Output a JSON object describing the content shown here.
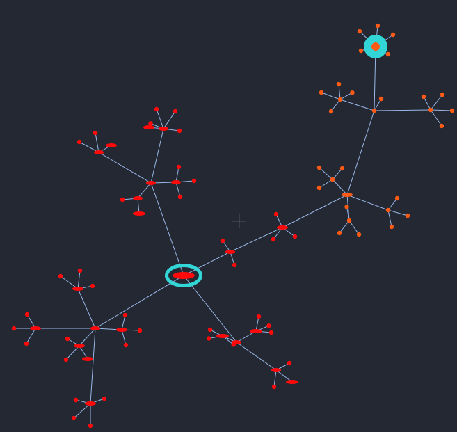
{
  "colors": {
    "background": "#232832",
    "edge": "#9ab8e8",
    "root_node": "#ff0a0a",
    "root_ring": "#33d6d6",
    "red_node": "#ff0a0a",
    "orange_node": "#ff5a14",
    "cursor": "#4c5464"
  },
  "graph": {
    "nodes": [
      {
        "id": "root",
        "kind": "root",
        "color": "red"
      },
      {
        "id": "t",
        "kind": "hub",
        "color": "red"
      },
      {
        "id": "t1",
        "kind": "hub",
        "color": "red"
      },
      {
        "id": "t1a",
        "kind": "leaf",
        "color": "red"
      },
      {
        "id": "t1b",
        "kind": "leaf",
        "color": "red"
      },
      {
        "id": "t1c",
        "kind": "leaf",
        "color": "red"
      },
      {
        "id": "t1d",
        "kind": "leaf",
        "color": "red"
      },
      {
        "id": "t1e",
        "kind": "leaf",
        "color": "red"
      },
      {
        "id": "t2",
        "kind": "hub",
        "color": "red"
      },
      {
        "id": "t2a",
        "kind": "leaf",
        "color": "red"
      },
      {
        "id": "t2b",
        "kind": "leaf",
        "color": "red"
      },
      {
        "id": "t2c",
        "kind": "leaf",
        "color": "red"
      },
      {
        "id": "t3",
        "kind": "hub",
        "color": "red"
      },
      {
        "id": "t3a",
        "kind": "leaf",
        "color": "red"
      },
      {
        "id": "t3b",
        "kind": "leaf",
        "color": "red"
      },
      {
        "id": "t3c",
        "kind": "leaf",
        "color": "red"
      },
      {
        "id": "t4",
        "kind": "hub",
        "color": "red"
      },
      {
        "id": "t4a",
        "kind": "leaf",
        "color": "red"
      },
      {
        "id": "t4b",
        "kind": "leaf",
        "color": "red"
      },
      {
        "id": "l",
        "kind": "hub",
        "color": "red"
      },
      {
        "id": "l1",
        "kind": "hub",
        "color": "red"
      },
      {
        "id": "l1a",
        "kind": "leaf",
        "color": "red"
      },
      {
        "id": "l1b",
        "kind": "leaf",
        "color": "red"
      },
      {
        "id": "l1c",
        "kind": "leaf",
        "color": "red"
      },
      {
        "id": "l2",
        "kind": "hub",
        "color": "red"
      },
      {
        "id": "l2a",
        "kind": "leaf",
        "color": "red"
      },
      {
        "id": "l2b",
        "kind": "leaf",
        "color": "red"
      },
      {
        "id": "l2c",
        "kind": "leaf",
        "color": "red"
      },
      {
        "id": "l3",
        "kind": "hub",
        "color": "red"
      },
      {
        "id": "l3a",
        "kind": "leaf",
        "color": "red"
      },
      {
        "id": "l3b",
        "kind": "leaf",
        "color": "red"
      },
      {
        "id": "l3c",
        "kind": "leaf",
        "color": "red"
      },
      {
        "id": "l4",
        "kind": "hub",
        "color": "red"
      },
      {
        "id": "l4a",
        "kind": "leaf",
        "color": "red"
      },
      {
        "id": "l4b",
        "kind": "leaf",
        "color": "red"
      },
      {
        "id": "l4c",
        "kind": "leaf",
        "color": "red"
      },
      {
        "id": "l5",
        "kind": "hub",
        "color": "red"
      },
      {
        "id": "l5a",
        "kind": "leaf",
        "color": "red"
      },
      {
        "id": "l5b",
        "kind": "leaf",
        "color": "red"
      },
      {
        "id": "l5c",
        "kind": "leaf",
        "color": "red"
      },
      {
        "id": "l5d",
        "kind": "leaf",
        "color": "red"
      },
      {
        "id": "b",
        "kind": "hub",
        "color": "red"
      },
      {
        "id": "b1",
        "kind": "hub",
        "color": "red"
      },
      {
        "id": "b1a",
        "kind": "leaf",
        "color": "red"
      },
      {
        "id": "b1b",
        "kind": "leaf",
        "color": "red"
      },
      {
        "id": "b1c",
        "kind": "leaf",
        "color": "red"
      },
      {
        "id": "b2",
        "kind": "hub",
        "color": "red"
      },
      {
        "id": "b2a",
        "kind": "leaf",
        "color": "red"
      },
      {
        "id": "b2b",
        "kind": "leaf",
        "color": "red"
      },
      {
        "id": "b2c",
        "kind": "leaf",
        "color": "red"
      },
      {
        "id": "b3",
        "kind": "hub",
        "color": "red"
      },
      {
        "id": "b3a",
        "kind": "leaf",
        "color": "red"
      },
      {
        "id": "b3b",
        "kind": "leaf",
        "color": "red"
      },
      {
        "id": "b3c",
        "kind": "leaf",
        "color": "red"
      },
      {
        "id": "r1",
        "kind": "hub",
        "color": "red"
      },
      {
        "id": "r1a",
        "kind": "leaf",
        "color": "red"
      },
      {
        "id": "r1b",
        "kind": "leaf",
        "color": "red"
      },
      {
        "id": "r2",
        "kind": "hub",
        "color": "red"
      },
      {
        "id": "r2a",
        "kind": "leaf",
        "color": "red"
      },
      {
        "id": "r2b",
        "kind": "leaf",
        "color": "red"
      },
      {
        "id": "r2c",
        "kind": "leaf",
        "color": "red"
      },
      {
        "id": "o1",
        "kind": "hub",
        "color": "orange"
      },
      {
        "id": "o1a",
        "kind": "hub",
        "color": "orange"
      },
      {
        "id": "o1a1",
        "kind": "leaf",
        "color": "orange"
      },
      {
        "id": "o1a2",
        "kind": "leaf",
        "color": "orange"
      },
      {
        "id": "o1a3",
        "kind": "leaf",
        "color": "orange"
      },
      {
        "id": "o1b",
        "kind": "hub",
        "color": "orange"
      },
      {
        "id": "o1b1",
        "kind": "leaf",
        "color": "orange"
      },
      {
        "id": "o1b2",
        "kind": "leaf",
        "color": "orange"
      },
      {
        "id": "o1b3",
        "kind": "leaf",
        "color": "orange"
      },
      {
        "id": "o1c",
        "kind": "hub",
        "color": "orange"
      },
      {
        "id": "o1c1",
        "kind": "leaf",
        "color": "orange"
      },
      {
        "id": "o1c2",
        "kind": "leaf",
        "color": "orange"
      },
      {
        "id": "o1c3",
        "kind": "leaf",
        "color": "orange"
      },
      {
        "id": "o2",
        "kind": "hub",
        "color": "orange"
      },
      {
        "id": "o2a",
        "kind": "hub",
        "color": "orange"
      },
      {
        "id": "o2a1",
        "kind": "leaf",
        "color": "orange"
      },
      {
        "id": "o2a2",
        "kind": "leaf",
        "color": "orange"
      },
      {
        "id": "o2a3",
        "kind": "leaf",
        "color": "orange"
      },
      {
        "id": "o2a4",
        "kind": "leaf",
        "color": "orange"
      },
      {
        "id": "o2b",
        "kind": "hub",
        "color": "orange"
      },
      {
        "id": "o2b1",
        "kind": "leaf",
        "color": "orange"
      },
      {
        "id": "o2b2",
        "kind": "leaf",
        "color": "orange"
      },
      {
        "id": "o2b3",
        "kind": "leaf",
        "color": "orange"
      },
      {
        "id": "o2b4",
        "kind": "leaf",
        "color": "orange"
      },
      {
        "id": "o2c",
        "kind": "leaf",
        "color": "orange"
      },
      {
        "id": "o3",
        "kind": "root",
        "color": "orange"
      },
      {
        "id": "o3a",
        "kind": "leaf",
        "color": "orange"
      },
      {
        "id": "o3b",
        "kind": "leaf",
        "color": "orange"
      },
      {
        "id": "o3c",
        "kind": "leaf",
        "color": "orange"
      },
      {
        "id": "o3d",
        "kind": "leaf",
        "color": "orange"
      },
      {
        "id": "o3e",
        "kind": "leaf",
        "color": "orange"
      }
    ],
    "edges": [
      [
        "root",
        "t"
      ],
      [
        "t",
        "t1"
      ],
      [
        "t1",
        "t1a"
      ],
      [
        "t1",
        "t1b"
      ],
      [
        "t1",
        "t1c"
      ],
      [
        "t1",
        "t1d"
      ],
      [
        "t1",
        "t1e"
      ],
      [
        "t",
        "t2"
      ],
      [
        "t2",
        "t2a"
      ],
      [
        "t2",
        "t2b"
      ],
      [
        "t2",
        "t2c"
      ],
      [
        "t",
        "t3"
      ],
      [
        "t3",
        "t3a"
      ],
      [
        "t3",
        "t3b"
      ],
      [
        "t3",
        "t3c"
      ],
      [
        "t",
        "t4"
      ],
      [
        "t4",
        "t4a"
      ],
      [
        "t4",
        "t4b"
      ],
      [
        "root",
        "l"
      ],
      [
        "l",
        "l1"
      ],
      [
        "l1",
        "l1a"
      ],
      [
        "l1",
        "l1b"
      ],
      [
        "l1",
        "l1c"
      ],
      [
        "l",
        "l2"
      ],
      [
        "l2",
        "l2a"
      ],
      [
        "l2",
        "l2b"
      ],
      [
        "l2",
        "l2c"
      ],
      [
        "l",
        "l3"
      ],
      [
        "l3",
        "l3a"
      ],
      [
        "l3",
        "l3b"
      ],
      [
        "l3",
        "l3c"
      ],
      [
        "l",
        "l4"
      ],
      [
        "l4",
        "l4a"
      ],
      [
        "l4",
        "l4b"
      ],
      [
        "l4",
        "l4c"
      ],
      [
        "l",
        "l5"
      ],
      [
        "l5",
        "l5a"
      ],
      [
        "l5",
        "l5b"
      ],
      [
        "l5",
        "l5c"
      ],
      [
        "l5",
        "l5d"
      ],
      [
        "root",
        "b"
      ],
      [
        "b",
        "b1"
      ],
      [
        "b1",
        "b1a"
      ],
      [
        "b1",
        "b1b"
      ],
      [
        "b1",
        "b1c"
      ],
      [
        "b",
        "b2"
      ],
      [
        "b2",
        "b2a"
      ],
      [
        "b2",
        "b2b"
      ],
      [
        "b2",
        "b2c"
      ],
      [
        "b",
        "b3"
      ],
      [
        "b3",
        "b3a"
      ],
      [
        "b3",
        "b3b"
      ],
      [
        "b3",
        "b3c"
      ],
      [
        "root",
        "r1"
      ],
      [
        "r1",
        "r1a"
      ],
      [
        "r1",
        "r1b"
      ],
      [
        "r1",
        "r2"
      ],
      [
        "r2",
        "r2a"
      ],
      [
        "r2",
        "r2b"
      ],
      [
        "r2",
        "r2c"
      ],
      [
        "r2",
        "o1"
      ],
      [
        "o1",
        "o1a"
      ],
      [
        "o1a",
        "o1a1"
      ],
      [
        "o1a",
        "o1a2"
      ],
      [
        "o1a",
        "o1a3"
      ],
      [
        "o1",
        "o1b"
      ],
      [
        "o1b",
        "o1b1"
      ],
      [
        "o1b",
        "o1b2"
      ],
      [
        "o1b",
        "o1b3"
      ],
      [
        "o1",
        "o1c"
      ],
      [
        "o1c",
        "o1c1"
      ],
      [
        "o1c",
        "o1c2"
      ],
      [
        "o1c",
        "o1c3"
      ],
      [
        "o1",
        "o2"
      ],
      [
        "o2",
        "o2a"
      ],
      [
        "o2a",
        "o2a1"
      ],
      [
        "o2a",
        "o2a2"
      ],
      [
        "o2a",
        "o2a3"
      ],
      [
        "o2a",
        "o2a4"
      ],
      [
        "o2",
        "o2b"
      ],
      [
        "o2b",
        "o2b1"
      ],
      [
        "o2b",
        "o2b2"
      ],
      [
        "o2b",
        "o2b3"
      ],
      [
        "o2b",
        "o2b4"
      ],
      [
        "o2",
        "o2c"
      ],
      [
        "o2",
        "o3"
      ],
      [
        "o3",
        "o3a"
      ],
      [
        "o3",
        "o3b"
      ],
      [
        "o3",
        "o3c"
      ],
      [
        "o3",
        "o3d"
      ],
      [
        "o3",
        "o3e"
      ]
    ]
  }
}
